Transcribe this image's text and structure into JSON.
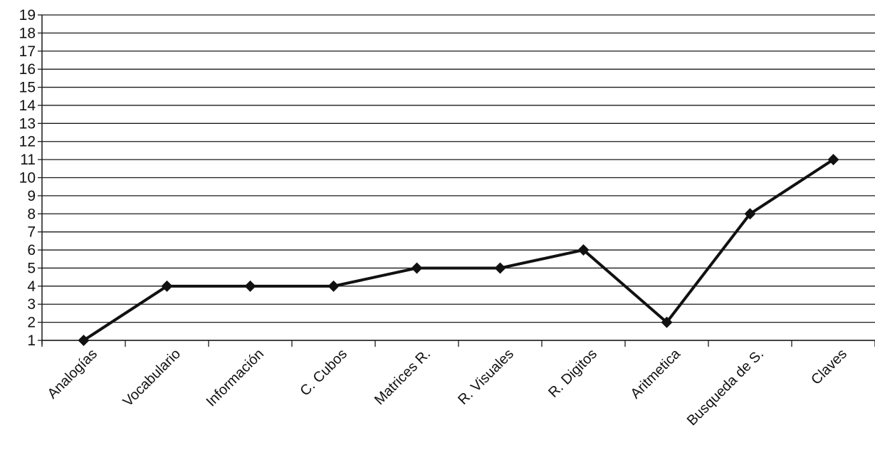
{
  "chart_data": {
    "type": "line",
    "title": "",
    "xlabel": "",
    "ylabel": "",
    "categories": [
      "Analogías",
      "Vocabulario",
      "Información",
      "C. Cubos",
      "Matrices R.",
      "R. Visuales",
      "R. Digitos",
      "Aritmetica",
      "Busqueda de S.",
      "Claves"
    ],
    "values": [
      1,
      4,
      4,
      4,
      5,
      5,
      6,
      2,
      8,
      11
    ],
    "ylim": [
      1,
      19
    ],
    "y_ticks": [
      1,
      2,
      3,
      4,
      5,
      6,
      7,
      8,
      9,
      10,
      11,
      12,
      13,
      14,
      15,
      16,
      17,
      18,
      19
    ],
    "grid": true,
    "legend": "none",
    "marker": "diamond",
    "colors": {
      "line": "#111111",
      "grid": "#1a1a1a",
      "background": "#ffffff"
    }
  }
}
